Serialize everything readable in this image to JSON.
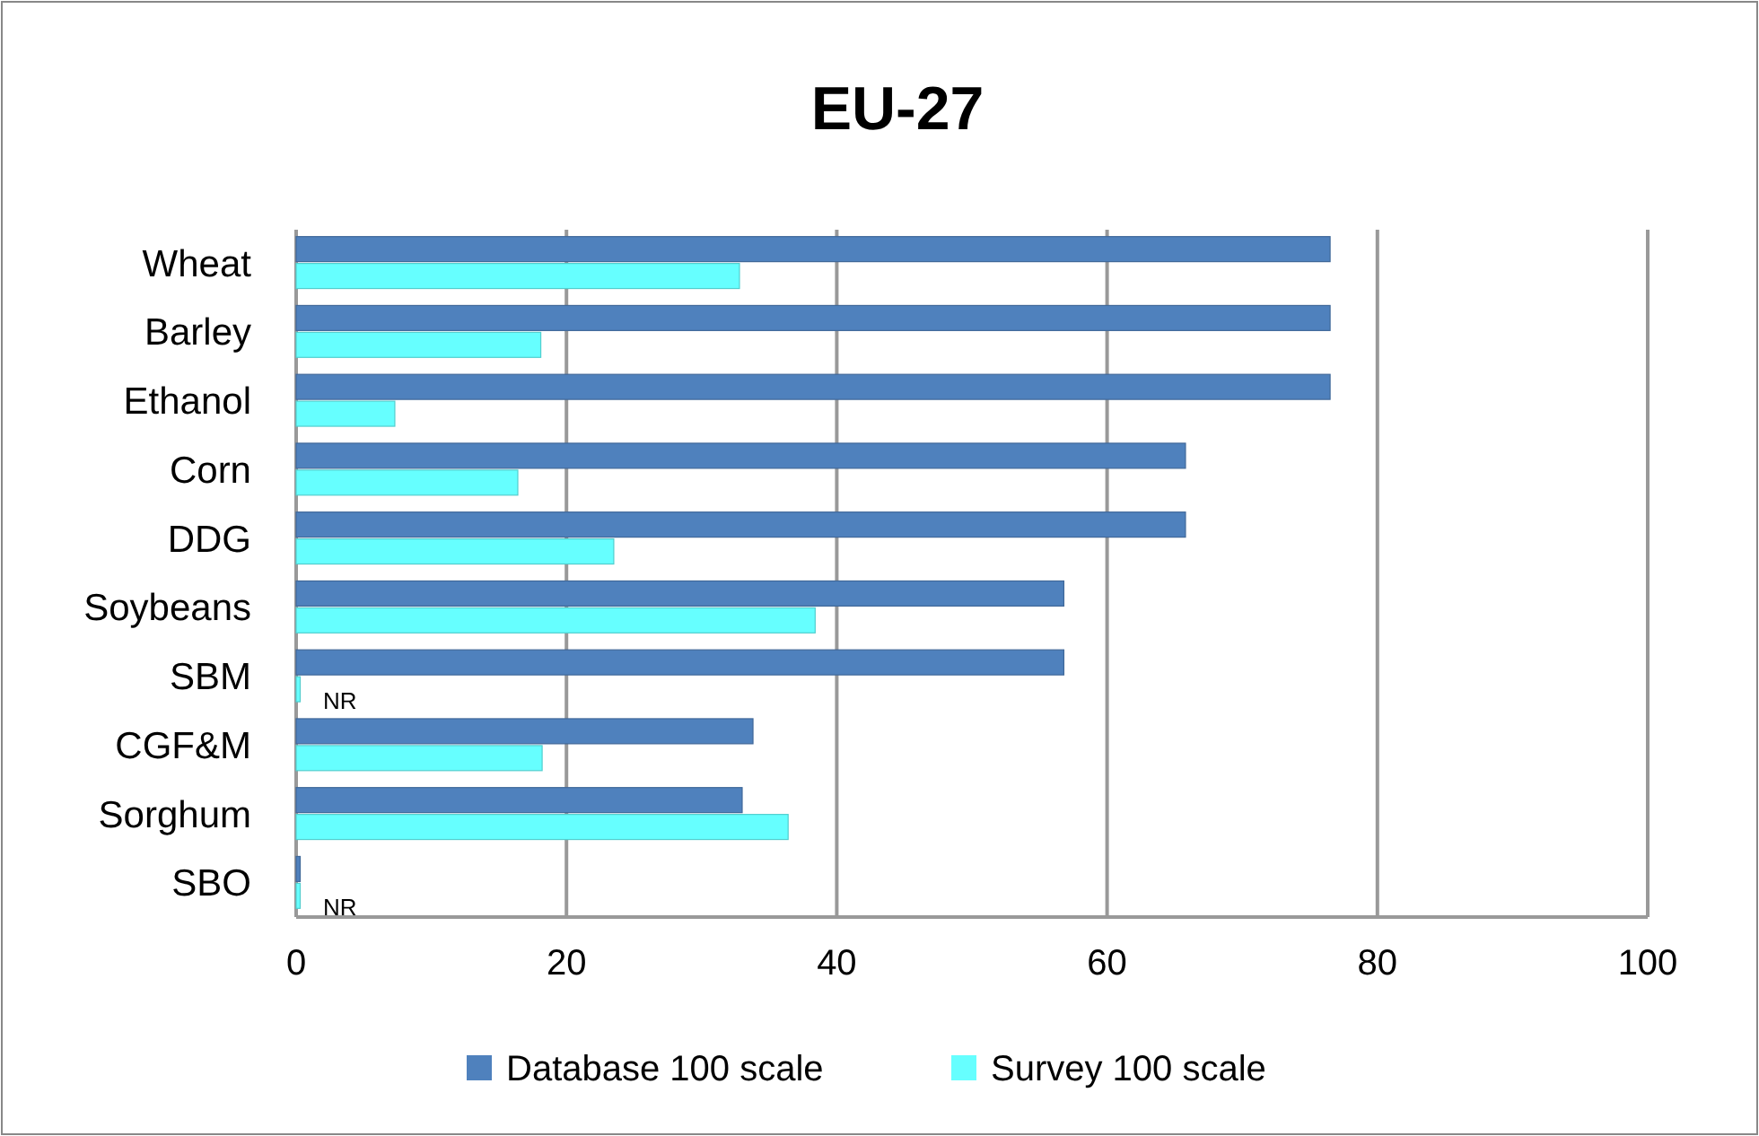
{
  "chart_data": {
    "type": "bar",
    "orientation": "horizontal",
    "title": "EU-27",
    "categories": [
      "Wheat",
      "Barley",
      "Ethanol",
      "Corn",
      "DDG",
      "Soybeans",
      "SBM",
      "CGF&M",
      "Sorghum",
      "SBO"
    ],
    "series": [
      {
        "name": "Database 100 scale",
        "color": "#4f81bd",
        "values": [
          76.5,
          76.5,
          76.5,
          65.8,
          65.8,
          56.8,
          56.8,
          33.8,
          33,
          0.3
        ]
      },
      {
        "name": "Survey 100 scale",
        "color": "#66ffff",
        "values": [
          32.8,
          18.1,
          7.3,
          16.4,
          23.5,
          38.4,
          0.3,
          18.2,
          36.4,
          0.3
        ]
      }
    ],
    "xlim": [
      0,
      100
    ],
    "xticks": [
      0,
      20,
      40,
      60,
      80,
      100
    ],
    "grid": "x",
    "legend": "bottom",
    "annotations": [
      {
        "text": "NR",
        "x": 0,
        "y": "SBM"
      },
      {
        "text": "NR",
        "x": 0,
        "y": "SBO"
      }
    ]
  }
}
